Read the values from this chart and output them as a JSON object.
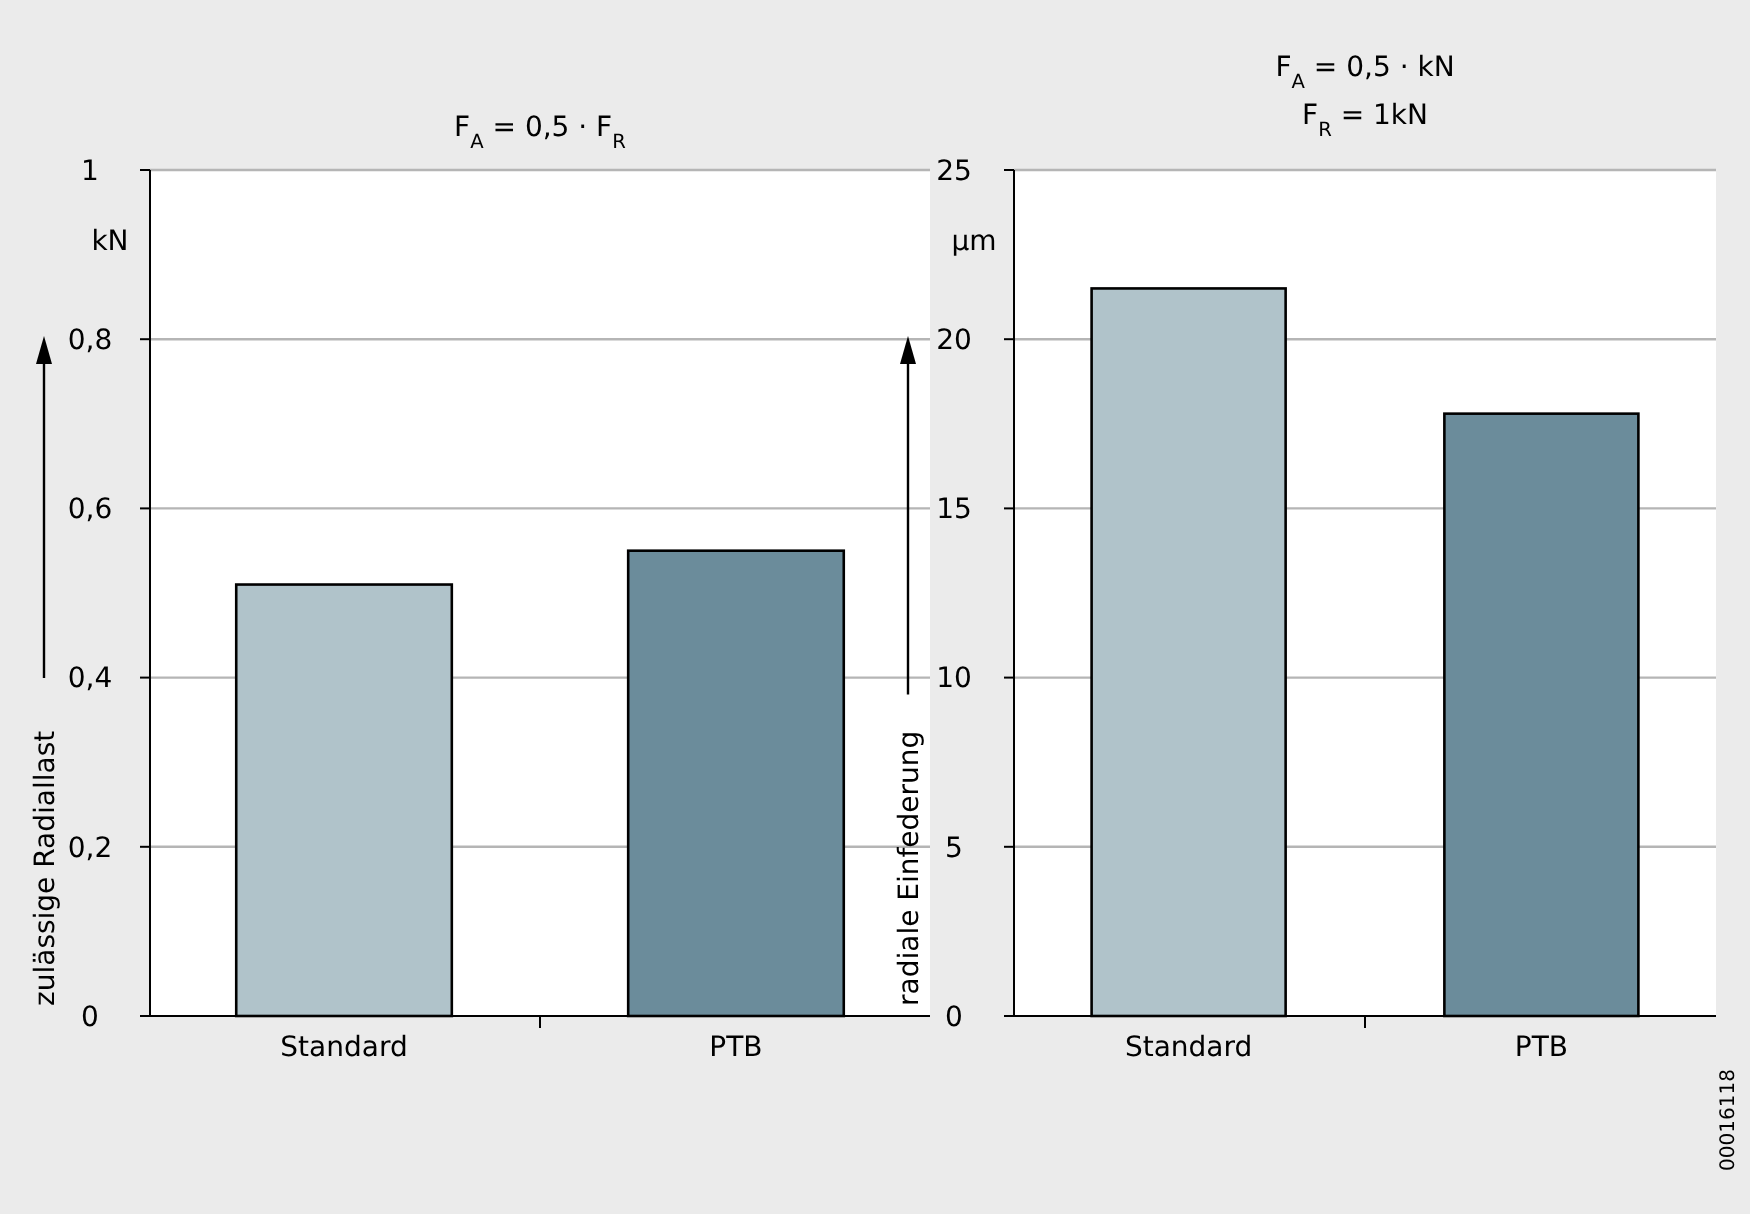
{
  "chart_data": [
    {
      "type": "bar",
      "title": "F$_{A}$ = 0,5 · F$_{R}$",
      "ylabel": "zulässige Radiallast",
      "categories": [
        "Standard",
        "PTB"
      ],
      "values": [
        0.51,
        0.55
      ],
      "colors": [
        "#b0c3ca",
        "#6b8c9b"
      ],
      "ylim": [
        0,
        1
      ],
      "yticks": [
        0,
        {
          "value": 0.2,
          "label": "0,2"
        },
        {
          "value": 0.4,
          "label": "0,4"
        },
        {
          "value": 0.6,
          "label": "0,6"
        },
        {
          "value": 0.8,
          "label": "0,8"
        },
        1
      ],
      "grid": "y",
      "annotations": [
        "kN"
      ]
    },
    {
      "type": "bar",
      "title": "F$_{A}$ = 0,5 · kN",
      "subtitle": "F$_{R}$ = 1kN",
      "ylabel": "radiale Einfederung",
      "categories": [
        "Standard",
        "PTB"
      ],
      "values": [
        21.5,
        17.8
      ],
      "colors": [
        "#b0c3ca",
        "#6b8c9b"
      ],
      "ylim": [
        0,
        25
      ],
      "yticks": [
        0,
        5,
        10,
        15,
        20,
        25
      ],
      "grid": "y",
      "annotations": [
        "µm",
        "00016118"
      ]
    }
  ]
}
